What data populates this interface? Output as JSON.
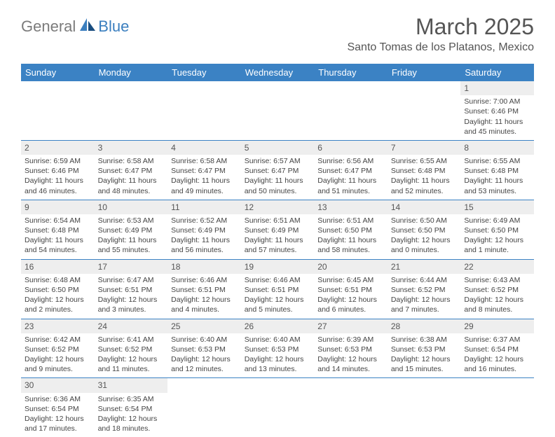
{
  "logo": {
    "part1": "General",
    "part2": "Blue"
  },
  "title": "March 2025",
  "location": "Santo Tomas de los Platanos, Mexico",
  "colors": {
    "header_bg": "#3b82c4",
    "header_text": "#ffffff",
    "grid_line": "#3b82c4",
    "daynum_bg": "#eeeeee",
    "text": "#444444",
    "logo_gray": "#7b7b7b",
    "logo_blue": "#3b7fbf"
  },
  "day_headers": [
    "Sunday",
    "Monday",
    "Tuesday",
    "Wednesday",
    "Thursday",
    "Friday",
    "Saturday"
  ],
  "weeks": [
    [
      null,
      null,
      null,
      null,
      null,
      null,
      {
        "n": "1",
        "sunrise": "Sunrise: 7:00 AM",
        "sunset": "Sunset: 6:46 PM",
        "daylight": "Daylight: 11 hours and 45 minutes."
      }
    ],
    [
      {
        "n": "2",
        "sunrise": "Sunrise: 6:59 AM",
        "sunset": "Sunset: 6:46 PM",
        "daylight": "Daylight: 11 hours and 46 minutes."
      },
      {
        "n": "3",
        "sunrise": "Sunrise: 6:58 AM",
        "sunset": "Sunset: 6:47 PM",
        "daylight": "Daylight: 11 hours and 48 minutes."
      },
      {
        "n": "4",
        "sunrise": "Sunrise: 6:58 AM",
        "sunset": "Sunset: 6:47 PM",
        "daylight": "Daylight: 11 hours and 49 minutes."
      },
      {
        "n": "5",
        "sunrise": "Sunrise: 6:57 AM",
        "sunset": "Sunset: 6:47 PM",
        "daylight": "Daylight: 11 hours and 50 minutes."
      },
      {
        "n": "6",
        "sunrise": "Sunrise: 6:56 AM",
        "sunset": "Sunset: 6:47 PM",
        "daylight": "Daylight: 11 hours and 51 minutes."
      },
      {
        "n": "7",
        "sunrise": "Sunrise: 6:55 AM",
        "sunset": "Sunset: 6:48 PM",
        "daylight": "Daylight: 11 hours and 52 minutes."
      },
      {
        "n": "8",
        "sunrise": "Sunrise: 6:55 AM",
        "sunset": "Sunset: 6:48 PM",
        "daylight": "Daylight: 11 hours and 53 minutes."
      }
    ],
    [
      {
        "n": "9",
        "sunrise": "Sunrise: 6:54 AM",
        "sunset": "Sunset: 6:48 PM",
        "daylight": "Daylight: 11 hours and 54 minutes."
      },
      {
        "n": "10",
        "sunrise": "Sunrise: 6:53 AM",
        "sunset": "Sunset: 6:49 PM",
        "daylight": "Daylight: 11 hours and 55 minutes."
      },
      {
        "n": "11",
        "sunrise": "Sunrise: 6:52 AM",
        "sunset": "Sunset: 6:49 PM",
        "daylight": "Daylight: 11 hours and 56 minutes."
      },
      {
        "n": "12",
        "sunrise": "Sunrise: 6:51 AM",
        "sunset": "Sunset: 6:49 PM",
        "daylight": "Daylight: 11 hours and 57 minutes."
      },
      {
        "n": "13",
        "sunrise": "Sunrise: 6:51 AM",
        "sunset": "Sunset: 6:50 PM",
        "daylight": "Daylight: 11 hours and 58 minutes."
      },
      {
        "n": "14",
        "sunrise": "Sunrise: 6:50 AM",
        "sunset": "Sunset: 6:50 PM",
        "daylight": "Daylight: 12 hours and 0 minutes."
      },
      {
        "n": "15",
        "sunrise": "Sunrise: 6:49 AM",
        "sunset": "Sunset: 6:50 PM",
        "daylight": "Daylight: 12 hours and 1 minute."
      }
    ],
    [
      {
        "n": "16",
        "sunrise": "Sunrise: 6:48 AM",
        "sunset": "Sunset: 6:50 PM",
        "daylight": "Daylight: 12 hours and 2 minutes."
      },
      {
        "n": "17",
        "sunrise": "Sunrise: 6:47 AM",
        "sunset": "Sunset: 6:51 PM",
        "daylight": "Daylight: 12 hours and 3 minutes."
      },
      {
        "n": "18",
        "sunrise": "Sunrise: 6:46 AM",
        "sunset": "Sunset: 6:51 PM",
        "daylight": "Daylight: 12 hours and 4 minutes."
      },
      {
        "n": "19",
        "sunrise": "Sunrise: 6:46 AM",
        "sunset": "Sunset: 6:51 PM",
        "daylight": "Daylight: 12 hours and 5 minutes."
      },
      {
        "n": "20",
        "sunrise": "Sunrise: 6:45 AM",
        "sunset": "Sunset: 6:51 PM",
        "daylight": "Daylight: 12 hours and 6 minutes."
      },
      {
        "n": "21",
        "sunrise": "Sunrise: 6:44 AM",
        "sunset": "Sunset: 6:52 PM",
        "daylight": "Daylight: 12 hours and 7 minutes."
      },
      {
        "n": "22",
        "sunrise": "Sunrise: 6:43 AM",
        "sunset": "Sunset: 6:52 PM",
        "daylight": "Daylight: 12 hours and 8 minutes."
      }
    ],
    [
      {
        "n": "23",
        "sunrise": "Sunrise: 6:42 AM",
        "sunset": "Sunset: 6:52 PM",
        "daylight": "Daylight: 12 hours and 9 minutes."
      },
      {
        "n": "24",
        "sunrise": "Sunrise: 6:41 AM",
        "sunset": "Sunset: 6:52 PM",
        "daylight": "Daylight: 12 hours and 11 minutes."
      },
      {
        "n": "25",
        "sunrise": "Sunrise: 6:40 AM",
        "sunset": "Sunset: 6:53 PM",
        "daylight": "Daylight: 12 hours and 12 minutes."
      },
      {
        "n": "26",
        "sunrise": "Sunrise: 6:40 AM",
        "sunset": "Sunset: 6:53 PM",
        "daylight": "Daylight: 12 hours and 13 minutes."
      },
      {
        "n": "27",
        "sunrise": "Sunrise: 6:39 AM",
        "sunset": "Sunset: 6:53 PM",
        "daylight": "Daylight: 12 hours and 14 minutes."
      },
      {
        "n": "28",
        "sunrise": "Sunrise: 6:38 AM",
        "sunset": "Sunset: 6:53 PM",
        "daylight": "Daylight: 12 hours and 15 minutes."
      },
      {
        "n": "29",
        "sunrise": "Sunrise: 6:37 AM",
        "sunset": "Sunset: 6:54 PM",
        "daylight": "Daylight: 12 hours and 16 minutes."
      }
    ],
    [
      {
        "n": "30",
        "sunrise": "Sunrise: 6:36 AM",
        "sunset": "Sunset: 6:54 PM",
        "daylight": "Daylight: 12 hours and 17 minutes."
      },
      {
        "n": "31",
        "sunrise": "Sunrise: 6:35 AM",
        "sunset": "Sunset: 6:54 PM",
        "daylight": "Daylight: 12 hours and 18 minutes."
      },
      null,
      null,
      null,
      null,
      null
    ]
  ]
}
